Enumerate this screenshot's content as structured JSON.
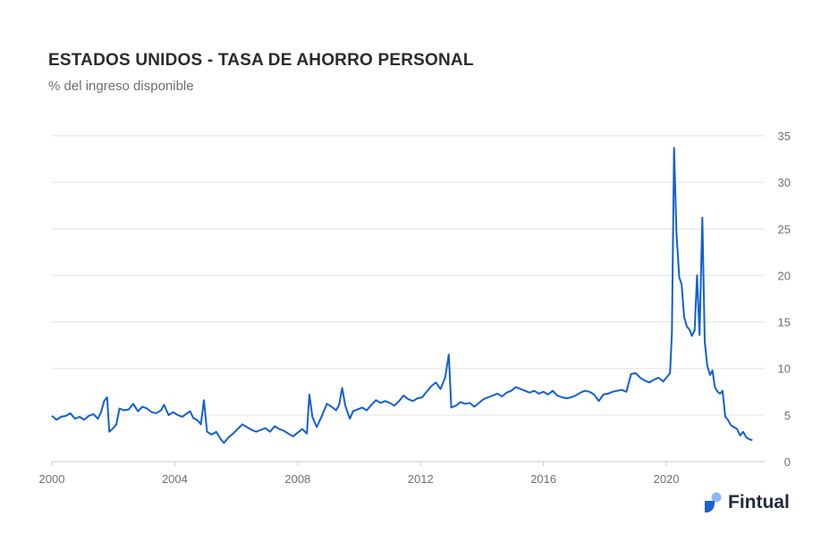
{
  "title": "ESTADOS UNIDOS - TASA DE AHORRO PERSONAL",
  "subtitle": "% del ingreso disponible",
  "brand": {
    "name": "Fintual",
    "icon": "fintual-logo-icon",
    "color": "#1f5fd1"
  },
  "colors": {
    "series": "#1160d3",
    "grid": "#e2e2e2",
    "text": "#6f6f6f",
    "title": "#2b2b2b"
  },
  "chart_data": {
    "type": "line",
    "title": "ESTADOS UNIDOS - TASA DE AHORRO PERSONAL",
    "subtitle": "% del ingreso disponible",
    "xlabel": "",
    "ylabel": "",
    "xlim": [
      2000,
      2023.2
    ],
    "ylim": [
      0,
      35
    ],
    "y_axis_position": "right",
    "grid": "horizontal",
    "x_ticks": [
      "2000",
      "2004",
      "2008",
      "2012",
      "2016",
      "2020"
    ],
    "y_ticks": [
      "0",
      "5",
      "10",
      "15",
      "20",
      "25",
      "30",
      "35"
    ],
    "series": [
      {
        "color": "#1160d3",
        "points": [
          [
            2000.0,
            4.9
          ],
          [
            2000.15,
            4.5
          ],
          [
            2000.3,
            4.8
          ],
          [
            2000.45,
            4.9
          ],
          [
            2000.6,
            5.2
          ],
          [
            2000.75,
            4.6
          ],
          [
            2000.9,
            4.8
          ],
          [
            2001.05,
            4.5
          ],
          [
            2001.2,
            4.9
          ],
          [
            2001.35,
            5.1
          ],
          [
            2001.5,
            4.6
          ],
          [
            2001.6,
            5.3
          ],
          [
            2001.7,
            6.5
          ],
          [
            2001.8,
            6.9
          ],
          [
            2001.87,
            3.2
          ],
          [
            2002.0,
            3.6
          ],
          [
            2002.1,
            4.0
          ],
          [
            2002.2,
            5.7
          ],
          [
            2002.35,
            5.5
          ],
          [
            2002.5,
            5.6
          ],
          [
            2002.65,
            6.2
          ],
          [
            2002.8,
            5.4
          ],
          [
            2002.95,
            5.9
          ],
          [
            2003.1,
            5.7
          ],
          [
            2003.25,
            5.3
          ],
          [
            2003.4,
            5.2
          ],
          [
            2003.55,
            5.5
          ],
          [
            2003.65,
            6.1
          ],
          [
            2003.8,
            5.0
          ],
          [
            2003.95,
            5.3
          ],
          [
            2004.1,
            5.0
          ],
          [
            2004.25,
            4.8
          ],
          [
            2004.4,
            5.2
          ],
          [
            2004.5,
            5.4
          ],
          [
            2004.6,
            4.7
          ],
          [
            2004.75,
            4.4
          ],
          [
            2004.85,
            4.0
          ],
          [
            2004.95,
            6.6
          ],
          [
            2005.05,
            3.2
          ],
          [
            2005.2,
            2.9
          ],
          [
            2005.35,
            3.2
          ],
          [
            2005.5,
            2.4
          ],
          [
            2005.6,
            2.0
          ],
          [
            2005.75,
            2.6
          ],
          [
            2005.9,
            3.0
          ],
          [
            2006.05,
            3.5
          ],
          [
            2006.2,
            4.0
          ],
          [
            2006.35,
            3.7
          ],
          [
            2006.5,
            3.4
          ],
          [
            2006.65,
            3.2
          ],
          [
            2006.8,
            3.4
          ],
          [
            2006.95,
            3.6
          ],
          [
            2007.1,
            3.2
          ],
          [
            2007.25,
            3.8
          ],
          [
            2007.4,
            3.5
          ],
          [
            2007.55,
            3.3
          ],
          [
            2007.7,
            3.0
          ],
          [
            2007.85,
            2.7
          ],
          [
            2008.0,
            3.1
          ],
          [
            2008.15,
            3.5
          ],
          [
            2008.3,
            3.0
          ],
          [
            2008.38,
            7.2
          ],
          [
            2008.48,
            4.8
          ],
          [
            2008.62,
            3.7
          ],
          [
            2008.8,
            5.0
          ],
          [
            2008.95,
            6.2
          ],
          [
            2009.1,
            5.9
          ],
          [
            2009.25,
            5.5
          ],
          [
            2009.35,
            6.1
          ],
          [
            2009.45,
            7.9
          ],
          [
            2009.55,
            6.0
          ],
          [
            2009.7,
            4.6
          ],
          [
            2009.8,
            5.4
          ],
          [
            2009.95,
            5.6
          ],
          [
            2010.1,
            5.8
          ],
          [
            2010.25,
            5.5
          ],
          [
            2010.4,
            6.1
          ],
          [
            2010.55,
            6.6
          ],
          [
            2010.7,
            6.3
          ],
          [
            2010.85,
            6.5
          ],
          [
            2011.0,
            6.3
          ],
          [
            2011.15,
            6.0
          ],
          [
            2011.3,
            6.5
          ],
          [
            2011.45,
            7.1
          ],
          [
            2011.6,
            6.7
          ],
          [
            2011.75,
            6.5
          ],
          [
            2011.9,
            6.8
          ],
          [
            2012.05,
            6.9
          ],
          [
            2012.2,
            7.5
          ],
          [
            2012.35,
            8.1
          ],
          [
            2012.5,
            8.5
          ],
          [
            2012.65,
            7.8
          ],
          [
            2012.8,
            9.0
          ],
          [
            2012.92,
            11.5
          ],
          [
            2013.0,
            5.8
          ],
          [
            2013.15,
            6.0
          ],
          [
            2013.3,
            6.4
          ],
          [
            2013.45,
            6.2
          ],
          [
            2013.6,
            6.3
          ],
          [
            2013.75,
            5.9
          ],
          [
            2013.9,
            6.3
          ],
          [
            2014.05,
            6.7
          ],
          [
            2014.2,
            6.9
          ],
          [
            2014.35,
            7.1
          ],
          [
            2014.5,
            7.3
          ],
          [
            2014.65,
            7.0
          ],
          [
            2014.8,
            7.4
          ],
          [
            2014.95,
            7.6
          ],
          [
            2015.1,
            8.0
          ],
          [
            2015.25,
            7.8
          ],
          [
            2015.4,
            7.6
          ],
          [
            2015.55,
            7.4
          ],
          [
            2015.7,
            7.6
          ],
          [
            2015.85,
            7.3
          ],
          [
            2016.0,
            7.5
          ],
          [
            2016.15,
            7.2
          ],
          [
            2016.3,
            7.6
          ],
          [
            2016.45,
            7.1
          ],
          [
            2016.6,
            6.9
          ],
          [
            2016.75,
            6.8
          ],
          [
            2016.9,
            6.9
          ],
          [
            2017.05,
            7.1
          ],
          [
            2017.2,
            7.4
          ],
          [
            2017.35,
            7.6
          ],
          [
            2017.5,
            7.5
          ],
          [
            2017.65,
            7.2
          ],
          [
            2017.8,
            6.5
          ],
          [
            2017.95,
            7.2
          ],
          [
            2018.1,
            7.3
          ],
          [
            2018.25,
            7.5
          ],
          [
            2018.4,
            7.6
          ],
          [
            2018.55,
            7.7
          ],
          [
            2018.7,
            7.5
          ],
          [
            2018.85,
            9.4
          ],
          [
            2019.0,
            9.5
          ],
          [
            2019.15,
            9.0
          ],
          [
            2019.3,
            8.7
          ],
          [
            2019.45,
            8.5
          ],
          [
            2019.6,
            8.8
          ],
          [
            2019.75,
            9.0
          ],
          [
            2019.9,
            8.6
          ],
          [
            2020.0,
            9.0
          ],
          [
            2020.12,
            9.5
          ],
          [
            2020.18,
            13.8
          ],
          [
            2020.25,
            33.7
          ],
          [
            2020.33,
            24.5
          ],
          [
            2020.42,
            19.8
          ],
          [
            2020.5,
            19.0
          ],
          [
            2020.58,
            15.5
          ],
          [
            2020.67,
            14.5
          ],
          [
            2020.75,
            14.2
          ],
          [
            2020.83,
            13.5
          ],
          [
            2020.92,
            14.1
          ],
          [
            2021.0,
            20.0
          ],
          [
            2021.08,
            13.6
          ],
          [
            2021.17,
            26.2
          ],
          [
            2021.25,
            12.9
          ],
          [
            2021.33,
            10.3
          ],
          [
            2021.42,
            9.3
          ],
          [
            2021.5,
            9.8
          ],
          [
            2021.58,
            8.0
          ],
          [
            2021.67,
            7.5
          ],
          [
            2021.75,
            7.3
          ],
          [
            2021.83,
            7.6
          ],
          [
            2021.92,
            4.8
          ],
          [
            2022.0,
            4.5
          ],
          [
            2022.1,
            3.9
          ],
          [
            2022.2,
            3.7
          ],
          [
            2022.3,
            3.5
          ],
          [
            2022.4,
            2.8
          ],
          [
            2022.5,
            3.2
          ],
          [
            2022.6,
            2.6
          ],
          [
            2022.7,
            2.4
          ],
          [
            2022.8,
            2.3
          ]
        ]
      }
    ]
  }
}
